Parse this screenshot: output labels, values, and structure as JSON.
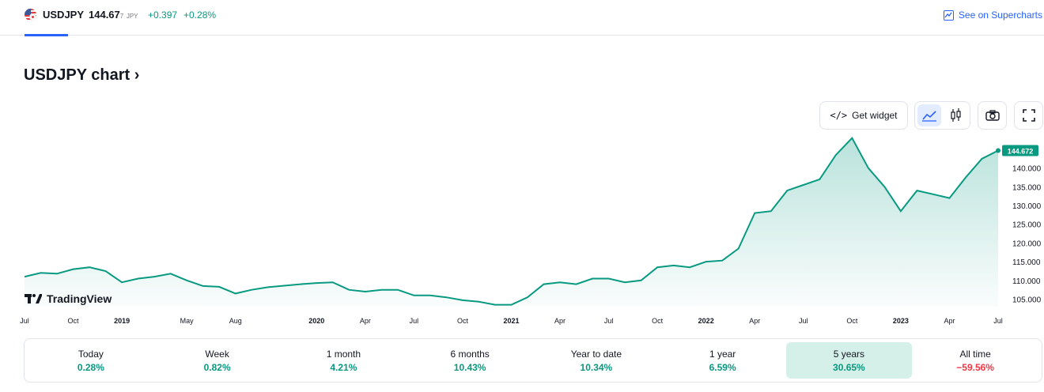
{
  "header": {
    "symbol": "USDJPY",
    "price_main": "144.67",
    "price_tail": "7",
    "currency": "JPY",
    "change": "+0.397",
    "change_pct": "+0.28%",
    "supercharts_label": "See on Supercharts"
  },
  "title": "USDJPY chart",
  "toolbar": {
    "widget_label": "Get widget"
  },
  "logo_text": "TradingView",
  "colors": {
    "accent": "#089981",
    "negative": "#f23645",
    "link": "#2962ff",
    "active_tab": "#d5efe9"
  },
  "chart_data": {
    "type": "area",
    "x": [
      "2018-07",
      "2018-08",
      "2018-09",
      "2018-10",
      "2018-11",
      "2018-12",
      "2019-01",
      "2019-02",
      "2019-03",
      "2019-04",
      "2019-05",
      "2019-06",
      "2019-07",
      "2019-08",
      "2019-09",
      "2019-10",
      "2019-11",
      "2019-12",
      "2020-01",
      "2020-02",
      "2020-03",
      "2020-04",
      "2020-05",
      "2020-06",
      "2020-07",
      "2020-08",
      "2020-09",
      "2020-10",
      "2020-11",
      "2020-12",
      "2021-01",
      "2021-02",
      "2021-03",
      "2021-04",
      "2021-05",
      "2021-06",
      "2021-07",
      "2021-08",
      "2021-09",
      "2021-10",
      "2021-11",
      "2021-12",
      "2022-01",
      "2022-02",
      "2022-03",
      "2022-04",
      "2022-05",
      "2022-06",
      "2022-07",
      "2022-08",
      "2022-09",
      "2022-10",
      "2022-11",
      "2022-12",
      "2023-01",
      "2023-02",
      "2023-03",
      "2023-04",
      "2023-05",
      "2023-06",
      "2023-07"
    ],
    "values": [
      111.0,
      112.0,
      111.8,
      113.0,
      113.5,
      112.5,
      109.5,
      110.5,
      111.0,
      111.8,
      110.0,
      108.5,
      108.3,
      106.5,
      107.5,
      108.2,
      108.6,
      109.0,
      109.3,
      109.5,
      107.5,
      107.0,
      107.5,
      107.5,
      106.0,
      106.0,
      105.5,
      104.7,
      104.3,
      103.5,
      103.5,
      105.5,
      109.0,
      109.5,
      109.0,
      110.5,
      110.5,
      109.5,
      110.0,
      113.5,
      114.0,
      113.5,
      115.0,
      115.3,
      118.5,
      128.0,
      128.5,
      134.0,
      135.5,
      137.0,
      143.5,
      148.0,
      140.0,
      135.0,
      128.5,
      134.0,
      133.0,
      132.0,
      137.5,
      142.5,
      144.672
    ],
    "x_tick_labels": [
      "Jul",
      "Oct",
      "2019",
      "May",
      "Aug",
      "2020",
      "Apr",
      "Jul",
      "Oct",
      "2021",
      "Apr",
      "Jul",
      "Oct",
      "2022",
      "Apr",
      "Jul",
      "Oct",
      "2023",
      "Apr",
      "Jul"
    ],
    "y_tick_labels": [
      "105.000",
      "110.000",
      "115.000",
      "120.000",
      "125.000",
      "130.000",
      "135.000",
      "140.000"
    ],
    "last_value_label": "144.672",
    "ylim": [
      103,
      149
    ],
    "grid": false,
    "legend": false
  },
  "periods": [
    {
      "label": "Today",
      "value": "0.28%",
      "positive": true
    },
    {
      "label": "Week",
      "value": "0.82%",
      "positive": true
    },
    {
      "label": "1 month",
      "value": "4.21%",
      "positive": true
    },
    {
      "label": "6 months",
      "value": "10.43%",
      "positive": true
    },
    {
      "label": "Year to date",
      "value": "10.34%",
      "positive": true
    },
    {
      "label": "1 year",
      "value": "6.59%",
      "positive": true
    },
    {
      "label": "5 years",
      "value": "30.65%",
      "positive": true,
      "active": true
    },
    {
      "label": "All time",
      "value": "−59.56%",
      "positive": false
    }
  ]
}
